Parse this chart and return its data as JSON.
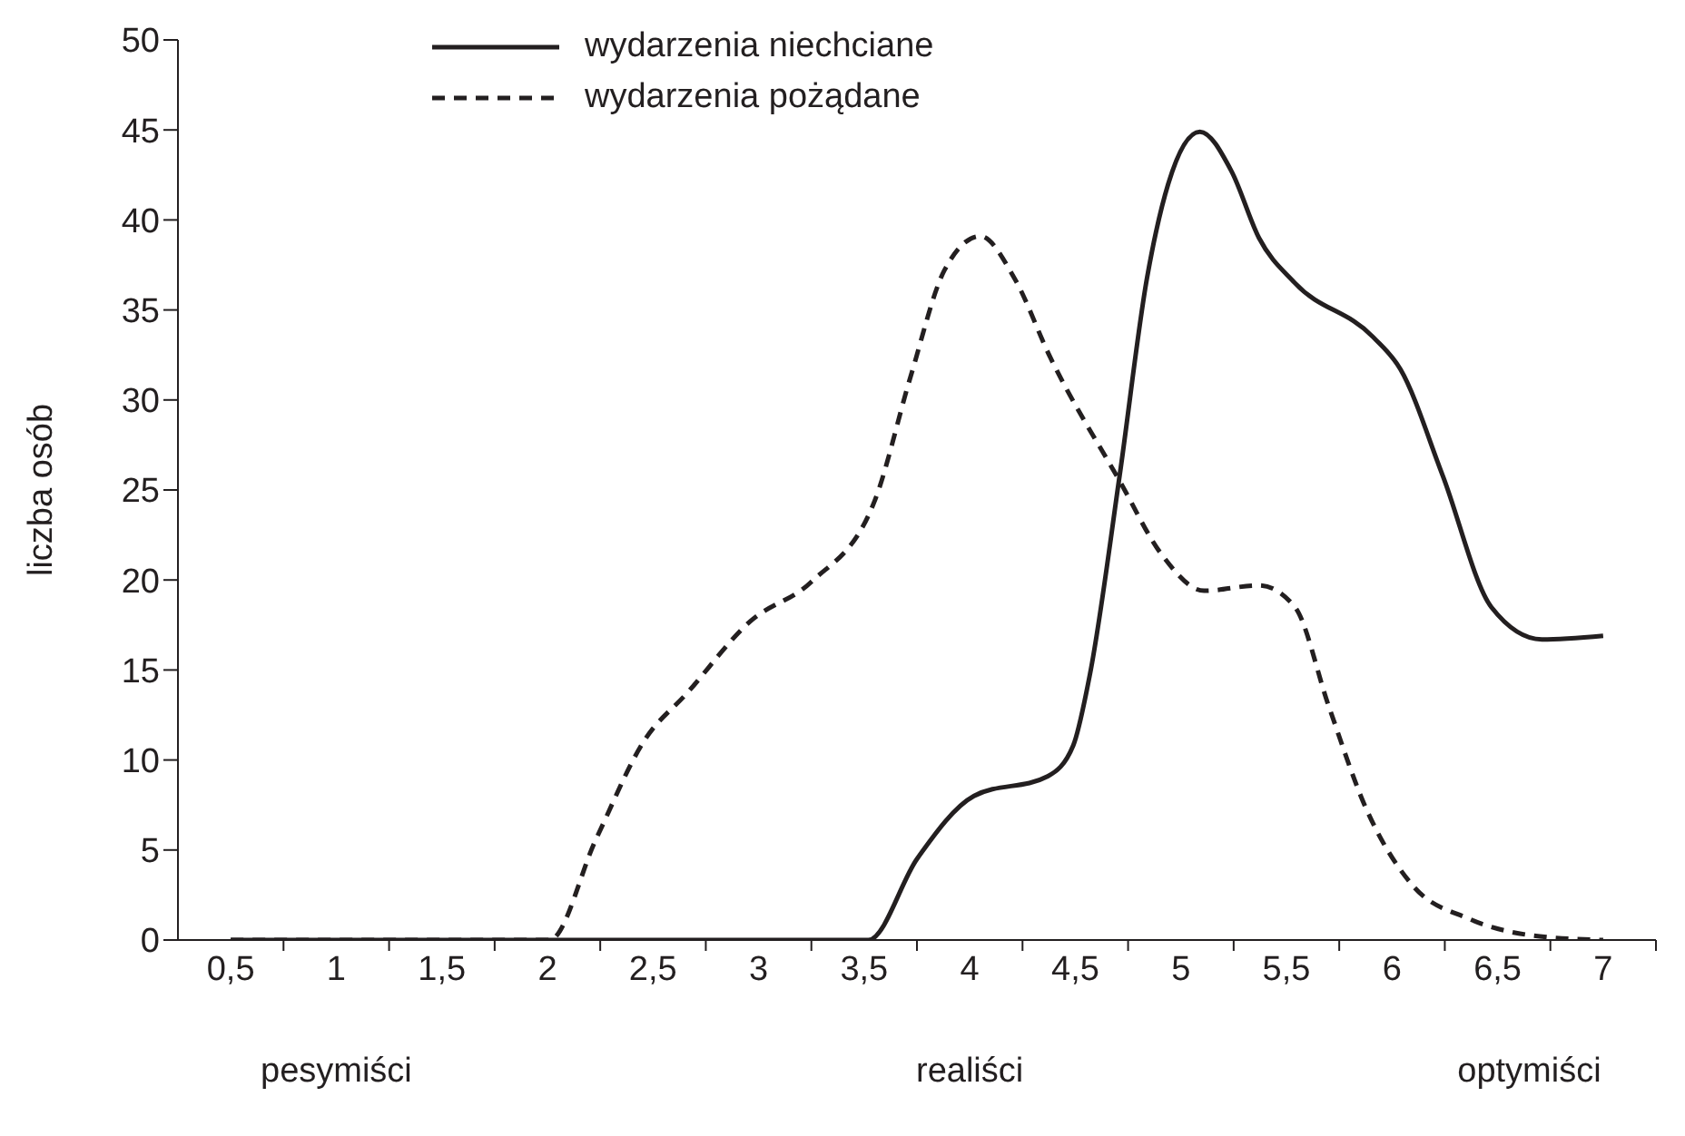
{
  "chart_data": {
    "type": "line",
    "ylabel": "liczba osób",
    "annotations": [
      "pesymiści",
      "realiści",
      "optymiści"
    ],
    "xlim": [
      0.25,
      7.25
    ],
    "xticks": [
      {
        "value": 0.5,
        "label": "0,5"
      },
      {
        "value": 0.75,
        "label": null
      },
      {
        "value": 1,
        "label": "1"
      },
      {
        "value": 1.25,
        "label": null
      },
      {
        "value": 1.5,
        "label": "1,5"
      },
      {
        "value": 1.75,
        "label": null
      },
      {
        "value": 2,
        "label": "2"
      },
      {
        "value": 2.25,
        "label": null
      },
      {
        "value": 2.5,
        "label": "2,5"
      },
      {
        "value": 2.75,
        "label": null
      },
      {
        "value": 3,
        "label": "3"
      },
      {
        "value": 3.25,
        "label": null
      },
      {
        "value": 3.5,
        "label": "3,5"
      },
      {
        "value": 3.75,
        "label": null
      },
      {
        "value": 4,
        "label": "4"
      },
      {
        "value": 4.25,
        "label": null
      },
      {
        "value": 4.5,
        "label": "4,5"
      },
      {
        "value": 4.75,
        "label": null
      },
      {
        "value": 5,
        "label": "5"
      },
      {
        "value": 5.25,
        "label": null
      },
      {
        "value": 5.5,
        "label": "5,5"
      },
      {
        "value": 5.75,
        "label": null
      },
      {
        "value": 6,
        "label": "6"
      },
      {
        "value": 6.25,
        "label": null
      },
      {
        "value": 6.5,
        "label": "6,5"
      },
      {
        "value": 6.75,
        "label": null
      },
      {
        "value": 7,
        "label": "7"
      },
      {
        "value": 7.25,
        "label": null
      }
    ],
    "ylim": [
      0,
      50
    ],
    "yticks": [
      0,
      5,
      10,
      15,
      20,
      25,
      30,
      35,
      40,
      45,
      50
    ],
    "grid": false,
    "legend": "top",
    "marker": "none",
    "series": [
      {
        "name": "wydarzenia niechciane",
        "color": "#231f20",
        "line_style": "solid",
        "x": [
          0.5,
          1,
          1.5,
          2,
          2.5,
          3,
          3.25,
          3.52,
          3.75,
          4.02,
          4.37,
          4.49,
          4.57,
          4.71,
          4.84,
          4.94,
          5.09,
          5.24,
          5.37,
          5.54,
          5.91,
          6.04,
          6.24,
          6.47,
          6.71,
          7
        ],
        "values": [
          0,
          0,
          0,
          0,
          0,
          0,
          0,
          0,
          4.5,
          8,
          9.1,
          10.8,
          14.8,
          25.8,
          36.8,
          42,
          44.9,
          42.7,
          39,
          36.5,
          33.5,
          31.7,
          25.8,
          18.5,
          16.7,
          16.9
        ]
      },
      {
        "name": "wydarzenia pożądane",
        "color": "#231f20",
        "line_style": "dashed",
        "x": [
          0.5,
          1,
          1.5,
          2.01,
          2.23,
          2.46,
          2.66,
          2.96,
          3.25,
          3.55,
          3.72,
          3.88,
          4.05,
          4.21,
          4.38,
          4.71,
          4.91,
          5.11,
          5.37,
          5.54,
          5.7,
          5.87,
          6.1,
          6.36,
          6.7,
          7
        ],
        "values": [
          0,
          0,
          0,
          0,
          5.6,
          11.1,
          13.7,
          17.7,
          19.9,
          24.4,
          31.3,
          37.2,
          39.1,
          36.8,
          32.4,
          25.5,
          21.4,
          19.4,
          19.7,
          18.5,
          13,
          7.5,
          3,
          1.2,
          0.2,
          0
        ]
      }
    ]
  }
}
